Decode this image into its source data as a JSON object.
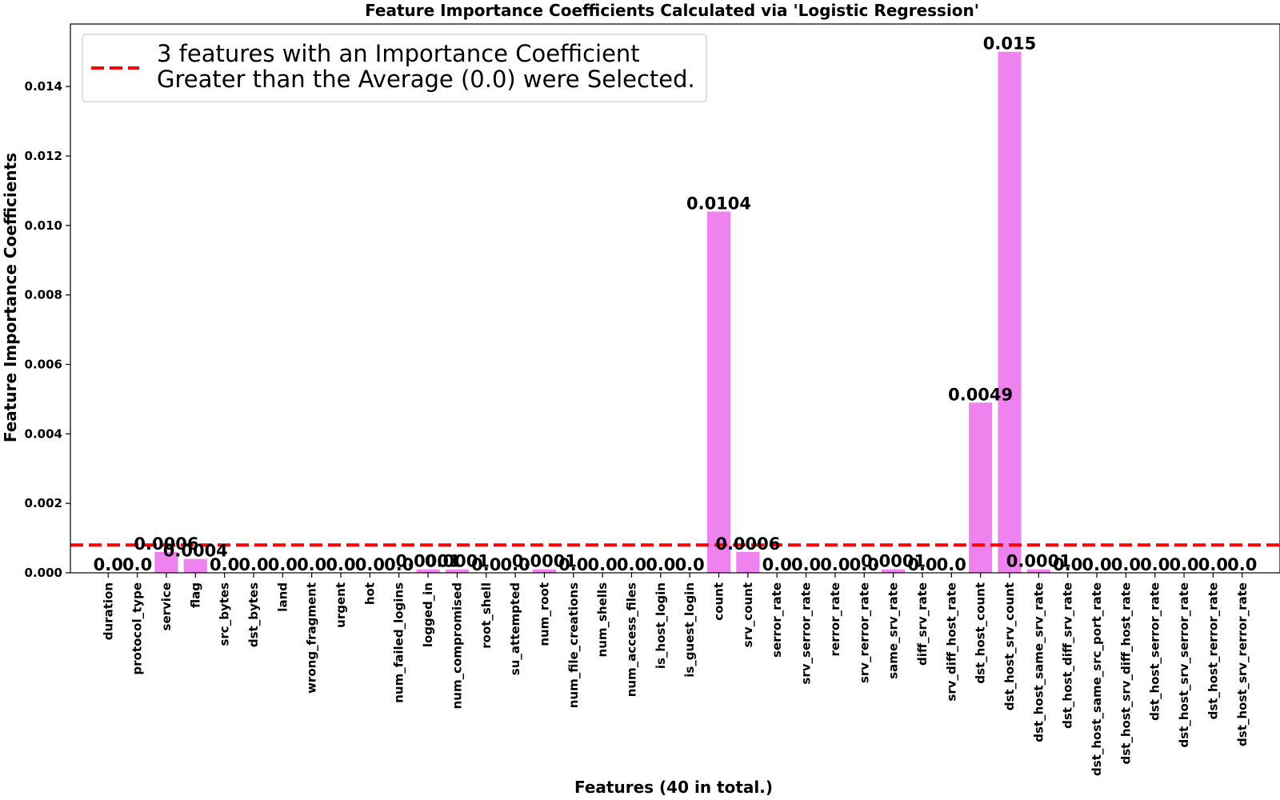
{
  "chart_data": {
    "type": "bar",
    "title": "Feature Importance Coefficients Calculated via 'Logistic Regression'",
    "xlabel": "Features (40 in total.)",
    "ylabel": "Feature Importance Coefficients",
    "ylim": [
      0,
      0.0158
    ],
    "yticks": [
      "0.000",
      "0.002",
      "0.004",
      "0.006",
      "0.008",
      "0.010",
      "0.012",
      "0.014"
    ],
    "yticks_values": [
      0,
      0.002,
      0.004,
      0.006,
      0.008,
      0.01,
      0.012,
      0.014
    ],
    "grid": false,
    "bar_color": "#ee82ee",
    "threshold": {
      "value": 0.0008,
      "color": "#ff0000",
      "style": "dashed",
      "label_line1": "3 features with an Importance Coefficient",
      "label_line2": "Greater than the Average (0.0) were Selected."
    },
    "legend_position": "top-left",
    "categories": [
      "duration",
      "protocol_type",
      "service",
      "flag",
      "src_bytes",
      "dst_bytes",
      "land",
      "wrong_fragment",
      "urgent",
      "hot",
      "num_failed_logins",
      "logged_in",
      "num_compromised",
      "root_shell",
      "su_attempted",
      "num_root",
      "num_file_creations",
      "num_shells",
      "num_access_files",
      "is_host_login",
      "is_guest_login",
      "count",
      "srv_count",
      "serror_rate",
      "srv_serror_rate",
      "rerror_rate",
      "srv_rerror_rate",
      "same_srv_rate",
      "diff_srv_rate",
      "srv_diff_host_rate",
      "dst_host_count",
      "dst_host_srv_count",
      "dst_host_same_srv_rate",
      "dst_host_diff_srv_rate",
      "dst_host_same_src_port_rate",
      "dst_host_srv_diff_host_rate",
      "dst_host_serror_rate",
      "dst_host_srv_serror_rate",
      "dst_host_rerror_rate",
      "dst_host_srv_rerror_rate"
    ],
    "values": [
      0.0,
      0.0,
      0.0006,
      0.0004,
      0.0,
      0.0,
      0.0,
      0.0,
      0.0,
      0.0,
      0.0,
      0.0001,
      0.0001,
      0.0,
      0.0,
      0.0001,
      0.0,
      0.0,
      0.0,
      0.0,
      0.0,
      0.0104,
      0.0006,
      0.0,
      0.0,
      0.0,
      0.0,
      0.0001,
      0.0,
      0.0,
      0.0049,
      0.015,
      0.0001,
      0.0,
      0.0,
      0.0,
      0.0,
      0.0,
      0.0,
      0.0
    ],
    "data_labels": [
      "0.0",
      "0.0",
      "0.0006",
      "0.0004",
      "0.0",
      "0.0",
      "0.0",
      "0.0",
      "0.0",
      "0.0",
      "0.0",
      "0.0001",
      "0.0001",
      "0.0",
      "0.0",
      "0.0001",
      "0.0",
      "0.0",
      "0.0",
      "0.0",
      "0.0",
      "0.0104",
      "0.0006",
      "0.0",
      "0.0",
      "0.0",
      "0.0",
      "0.0001",
      "0.0",
      "0.0",
      "0.0049",
      "0.015",
      "0.0001",
      "0.0",
      "0.0",
      "0.0",
      "0.0",
      "0.0",
      "0.0",
      "0.0"
    ]
  }
}
